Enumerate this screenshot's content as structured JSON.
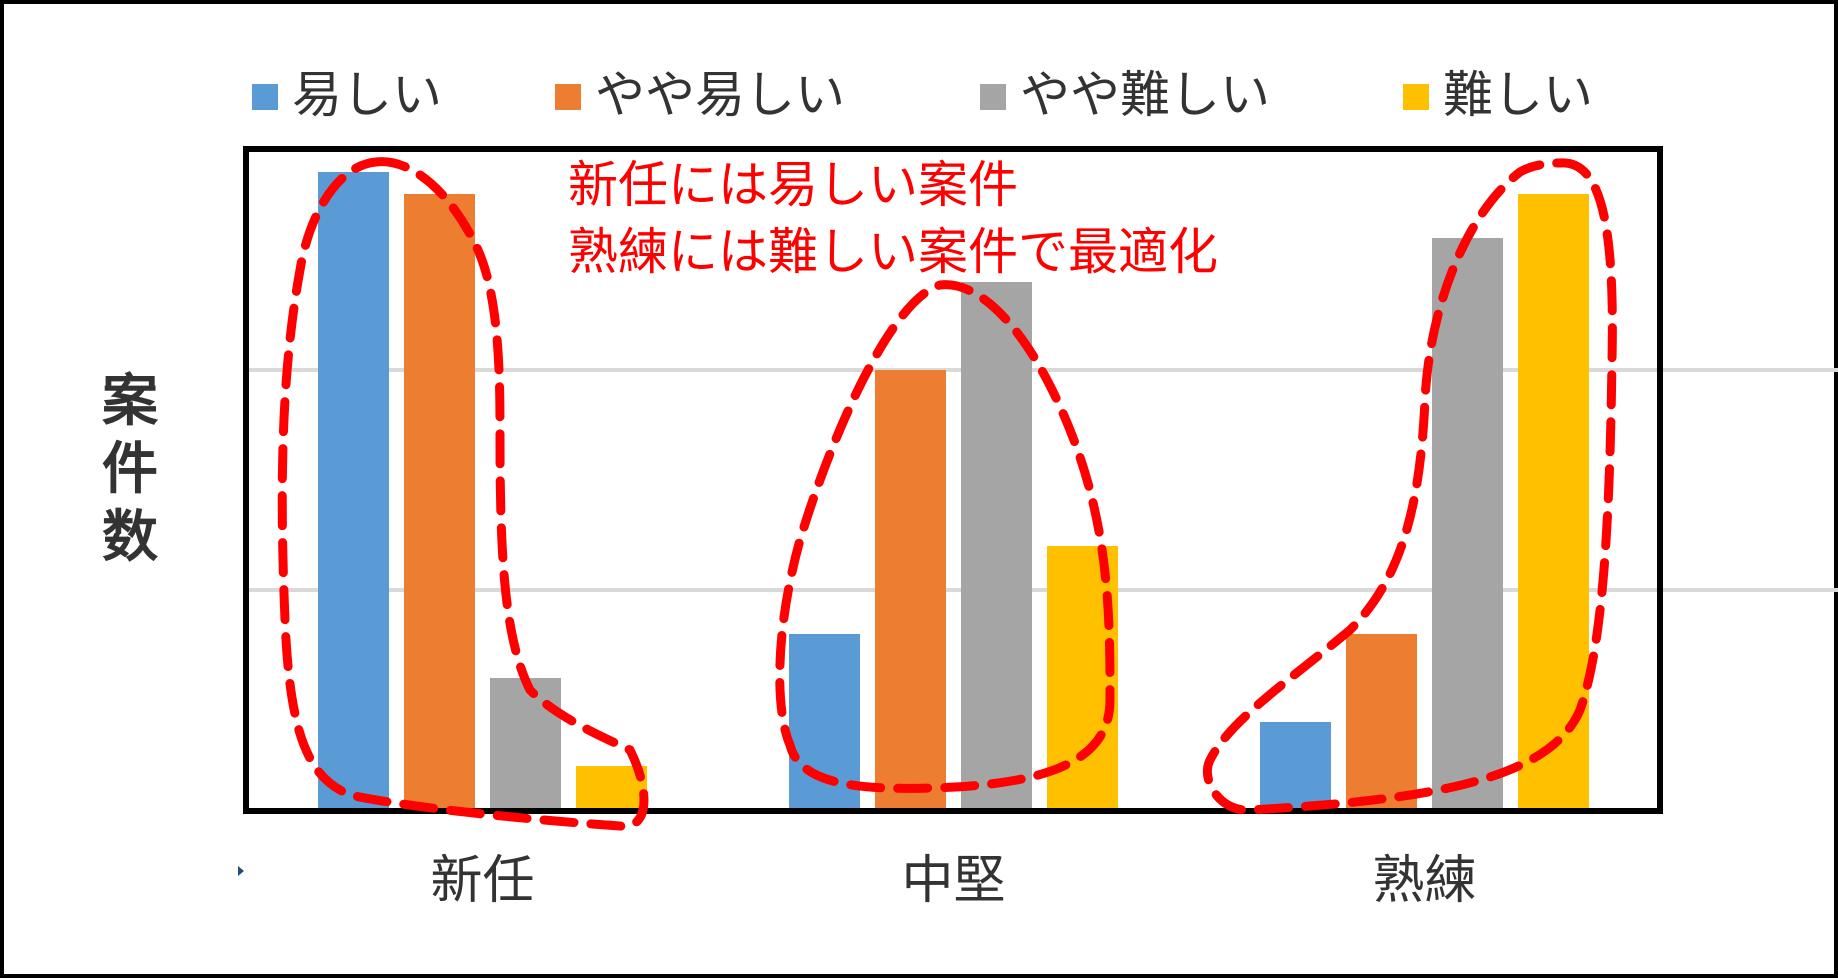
{
  "chart_data": {
    "type": "bar",
    "categories": [
      "新任",
      "中堅",
      "熟練"
    ],
    "series": [
      {
        "name": "易しい",
        "color": "#5b9bd5",
        "values": [
          29,
          8,
          4
        ]
      },
      {
        "name": "やや易しい",
        "color": "#ed7d31",
        "values": [
          28,
          20,
          8
        ]
      },
      {
        "name": "やや難しい",
        "color": "#a5a5a5",
        "values": [
          6,
          24,
          26
        ]
      },
      {
        "name": "難しい",
        "color": "#ffc000",
        "values": [
          2,
          12,
          28
        ]
      }
    ],
    "ylabel": "案件数",
    "ylim": [
      0,
      30
    ],
    "y_gridlines": [
      10,
      20
    ],
    "legend_position": "top",
    "annotation_lines": [
      "新任には易しい案件",
      "熟練には難しい案件で最適化"
    ],
    "annotation_color": "#ff0000"
  }
}
